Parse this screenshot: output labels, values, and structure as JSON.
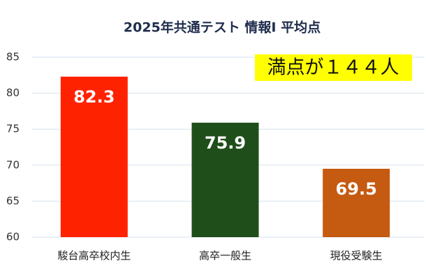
{
  "chart_data": {
    "type": "bar",
    "title": "2025年共通テスト 情報I 平均点",
    "annotation": "満点が１４４人",
    "categories": [
      "駿台高卒校内生",
      "高卒一般生",
      "現役受験生"
    ],
    "values": [
      82.3,
      75.9,
      69.5
    ],
    "colors": [
      "#ff2200",
      "#1f4e1a",
      "#c55a11"
    ],
    "ylim": [
      60,
      85
    ],
    "yticks": [
      60,
      65,
      70,
      75,
      80,
      85
    ],
    "grid": true
  }
}
